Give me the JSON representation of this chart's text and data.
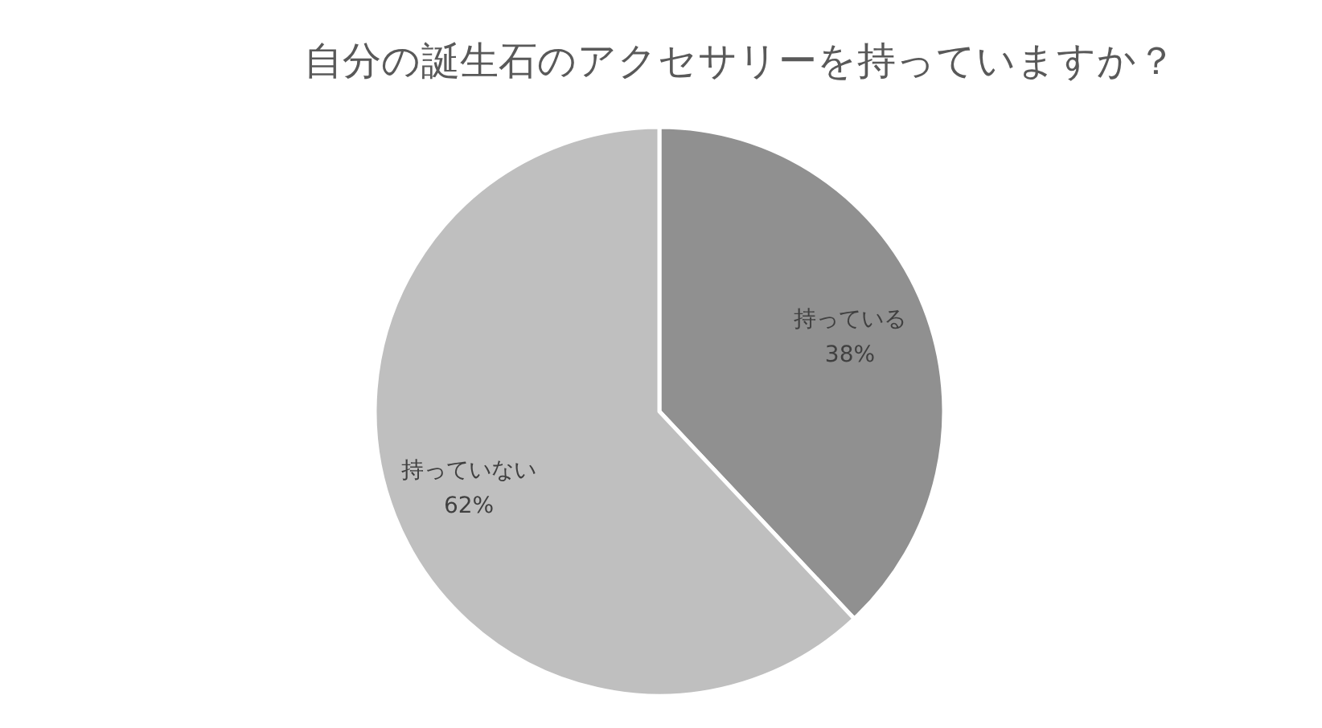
{
  "chart_data": {
    "type": "pie",
    "title": "自分の誕生石のアクセサリーを持っていますか？",
    "categories": [
      "持っている",
      "持っていない"
    ],
    "values": [
      38,
      62
    ],
    "colors": [
      "#909090",
      "#bfbfbf"
    ],
    "value_labels": [
      "38%",
      "62%"
    ]
  }
}
